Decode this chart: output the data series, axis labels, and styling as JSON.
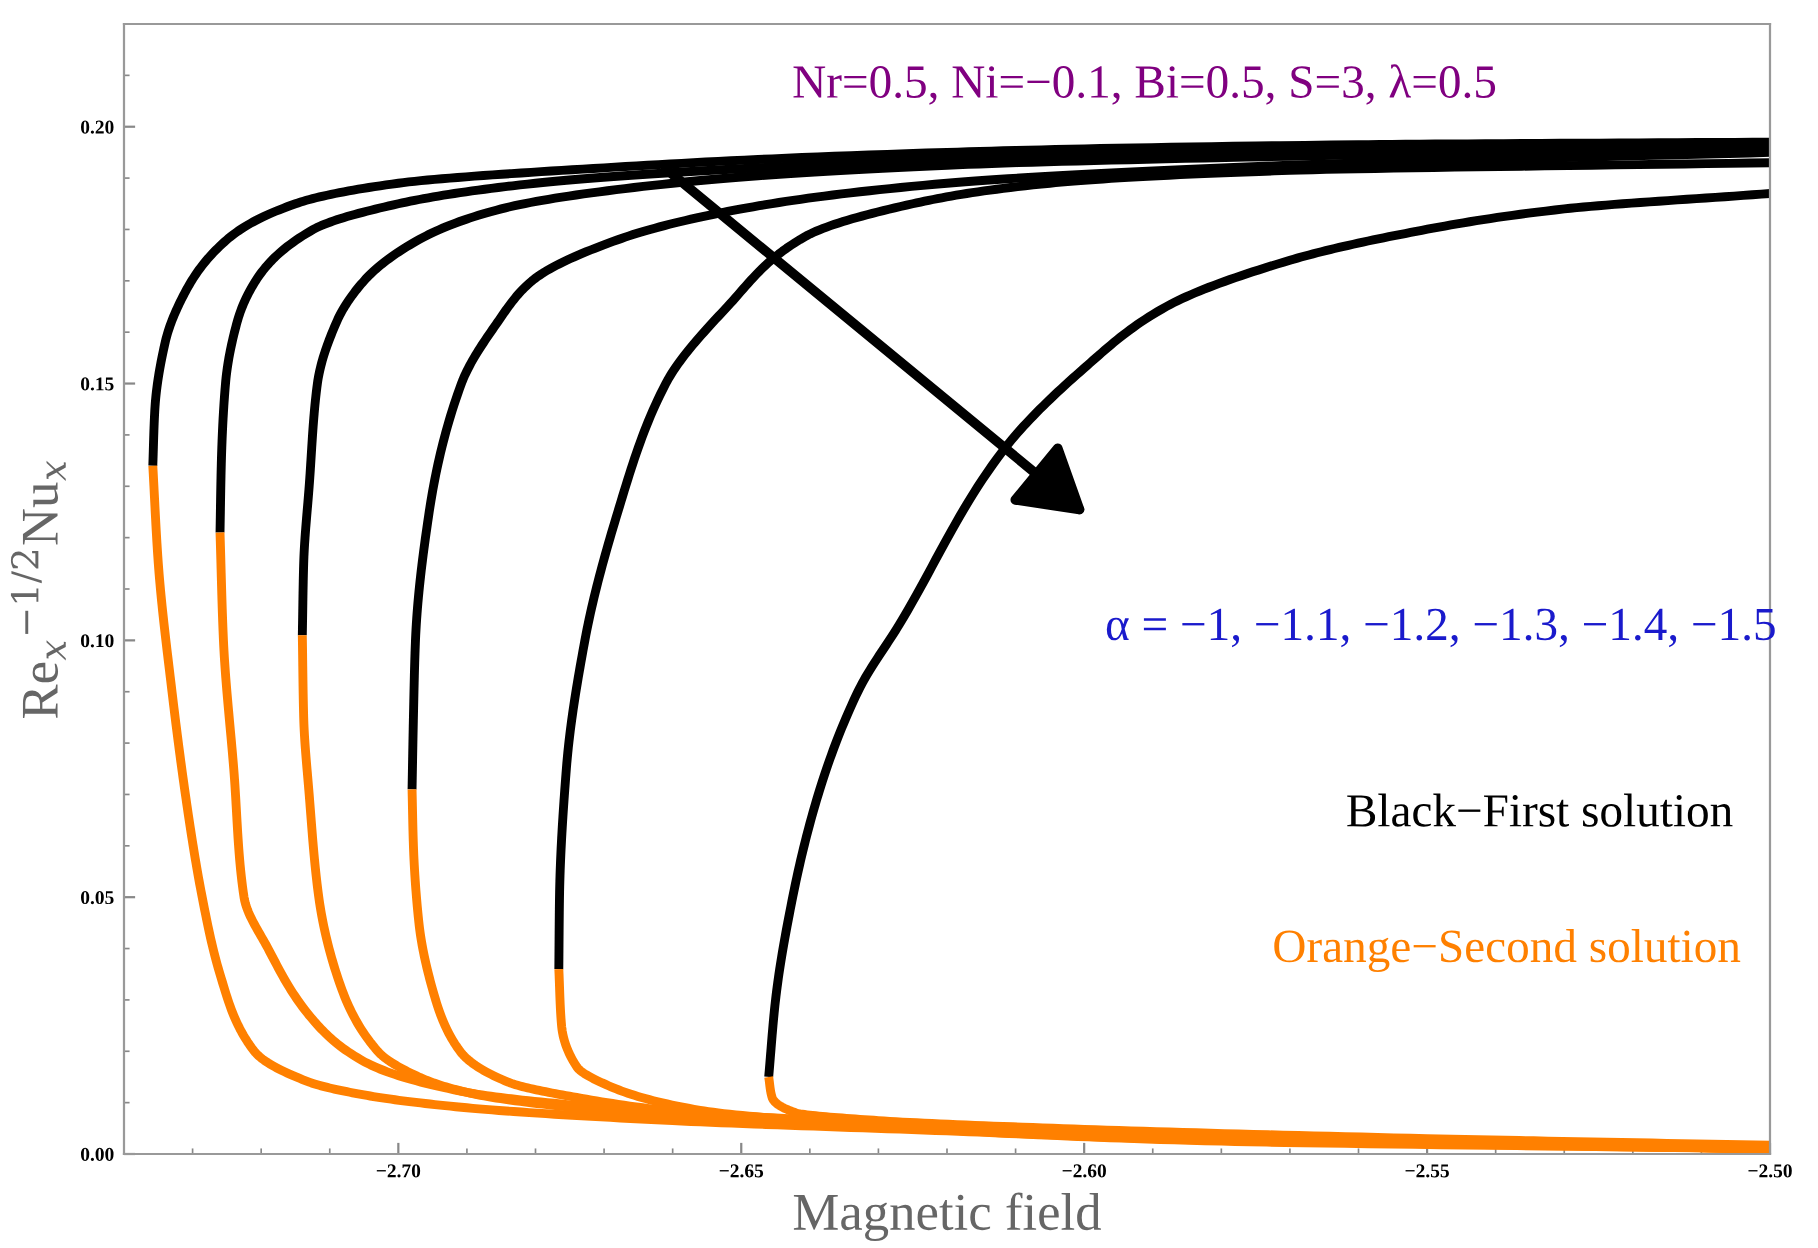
{
  "chart_data": {
    "type": "line",
    "xlabel": "Magnetic field",
    "ylabel": "Re$_{x}$$^{−1/2}$Nu$_{x}$",
    "xlim": [
      -2.74,
      -2.5
    ],
    "ylim": [
      0,
      0.22
    ],
    "xticks": [
      {
        "value": -2.7,
        "label": "−2.70"
      },
      {
        "value": -2.65,
        "label": "−2.65"
      },
      {
        "value": -2.6,
        "label": "−2.60"
      },
      {
        "value": -2.55,
        "label": "−2.55"
      },
      {
        "value": -2.5,
        "label": "−2.50"
      }
    ],
    "yticks": [
      {
        "value": 0,
        "label": "0.00"
      },
      {
        "value": 0.05,
        "label": "0.05"
      },
      {
        "value": 0.1,
        "label": "0.10"
      },
      {
        "value": 0.15,
        "label": "0.15"
      },
      {
        "value": 0.2,
        "label": "0.20"
      }
    ],
    "grid": false,
    "legend": false,
    "line_style": "solid",
    "marker": "none",
    "series": [
      {
        "color": "#000000",
        "x": [
          -2.7358,
          -2.7355,
          -2.734,
          -2.731,
          -2.725,
          -2.715,
          -2.7,
          -2.67,
          -2.62,
          -2.56,
          -2.5
        ],
        "values": [
          0.134,
          0.145,
          0.158,
          0.168,
          0.178,
          0.185,
          0.189,
          0.192,
          0.195,
          0.1965,
          0.197
        ]
      },
      {
        "color": "#ff8000",
        "x": [
          -2.7358,
          -2.735,
          -2.733,
          -2.7305,
          -2.7286,
          -2.726,
          -2.721,
          -2.713,
          -2.705,
          -2.69,
          -2.66,
          -2.62,
          -2.58,
          -2.5
        ],
        "values": [
          0.134,
          0.115,
          0.09,
          0.065,
          0.05,
          0.035,
          0.02,
          0.014,
          0.0115,
          0.009,
          0.0065,
          0.0045,
          0.0025,
          0.001
        ]
      },
      {
        "color": "#000000",
        "x": [
          -2.726,
          -2.7258,
          -2.7252,
          -2.7235,
          -2.7208,
          -2.7124,
          -2.7,
          -2.68,
          -2.64,
          -2.58,
          -2.5
        ],
        "values": [
          0.121,
          0.135,
          0.15,
          0.162,
          0.17,
          0.18,
          0.185,
          0.189,
          0.1925,
          0.195,
          0.196
        ]
      },
      {
        "color": "#ff8000",
        "x": [
          -2.726,
          -2.7255,
          -2.724,
          -2.7225,
          -2.719,
          -2.713,
          -2.705,
          -2.69,
          -2.67,
          -2.63,
          -2.58,
          -2.5
        ],
        "values": [
          0.121,
          0.1,
          0.075,
          0.05,
          0.04,
          0.027,
          0.018,
          0.012,
          0.009,
          0.006,
          0.003,
          0.001
        ]
      },
      {
        "color": "#000000",
        "x": [
          -2.714,
          -2.7138,
          -2.713,
          -2.7118,
          -2.709,
          -2.705,
          -2.697,
          -2.685,
          -2.66,
          -2.62,
          -2.56,
          -2.5
        ],
        "values": [
          0.101,
          0.115,
          0.13,
          0.15,
          0.162,
          0.17,
          0.178,
          0.184,
          0.189,
          0.1925,
          0.1945,
          0.1955
        ]
      },
      {
        "color": "#ff8000",
        "x": [
          -2.714,
          -2.7138,
          -2.713,
          -2.7116,
          -2.709,
          -2.703,
          -2.697,
          -2.689,
          -2.67,
          -2.63,
          -2.58,
          -2.5
        ],
        "values": [
          0.101,
          0.085,
          0.07,
          0.05,
          0.035,
          0.02,
          0.015,
          0.0117,
          0.0085,
          0.0055,
          0.003,
          0.001
        ]
      },
      {
        "color": "#000000",
        "x": [
          -2.698,
          -2.6978,
          -2.6975,
          -2.6955,
          -2.6908,
          -2.6855,
          -2.6805,
          -2.668,
          -2.65,
          -2.62,
          -2.57,
          -2.5
        ],
        "values": [
          0.071,
          0.085,
          0.1,
          0.125,
          0.15,
          0.162,
          0.17,
          0.178,
          0.184,
          0.189,
          0.1925,
          0.195
        ]
      },
      {
        "color": "#ff8000",
        "x": [
          -2.698,
          -2.6978,
          -2.697,
          -2.695,
          -2.691,
          -2.684,
          -2.674,
          -2.65,
          -2.61,
          -2.56,
          -2.5
        ],
        "values": [
          0.071,
          0.06,
          0.045,
          0.032,
          0.02,
          0.014,
          0.011,
          0.007,
          0.0045,
          0.0025,
          0.001
        ]
      },
      {
        "color": "#000000",
        "x": [
          -2.6766,
          -2.6765,
          -2.6755,
          -2.6728,
          -2.668,
          -2.661,
          -2.652,
          -2.6407,
          -2.625,
          -2.605,
          -2.57,
          -2.5
        ],
        "values": [
          0.036,
          0.05,
          0.075,
          0.1,
          0.125,
          0.15,
          0.165,
          0.1786,
          0.185,
          0.189,
          0.1915,
          0.193
        ]
      },
      {
        "color": "#ff8000",
        "x": [
          -2.6766,
          -2.6762,
          -2.674,
          -2.6697,
          -2.656,
          -2.63,
          -2.59,
          -2.5
        ],
        "values": [
          0.036,
          0.025,
          0.017,
          0.0135,
          0.0085,
          0.0055,
          0.003,
          0.001
        ]
      },
      {
        "color": "#000000",
        "x": [
          -2.646,
          -2.645,
          -2.6425,
          -2.639,
          -2.633,
          -2.627,
          -2.6118,
          -2.6,
          -2.588,
          -2.57,
          -2.554,
          -2.53,
          -2.5
        ],
        "values": [
          0.015,
          0.03,
          0.05,
          0.069,
          0.09,
          0.103,
          0.137,
          0.153,
          0.165,
          0.174,
          0.179,
          0.184,
          0.187
        ]
      },
      {
        "color": "#ff8000",
        "x": [
          -2.646,
          -2.6455,
          -2.642,
          -2.63,
          -2.6,
          -2.55,
          -2.5
        ],
        "values": [
          0.015,
          0.011,
          0.008,
          0.0065,
          0.0048,
          0.003,
          0.0017
        ]
      }
    ],
    "annotations": [
      "Nr=0.5, Ni=−0.1, Bi=0.5, S=3, λ=0.5",
      "α = −1, −1.1, −1.2, −1.3, −1.4, −1.5",
      "Black−First solution",
      "Orange−Second solution"
    ]
  }
}
